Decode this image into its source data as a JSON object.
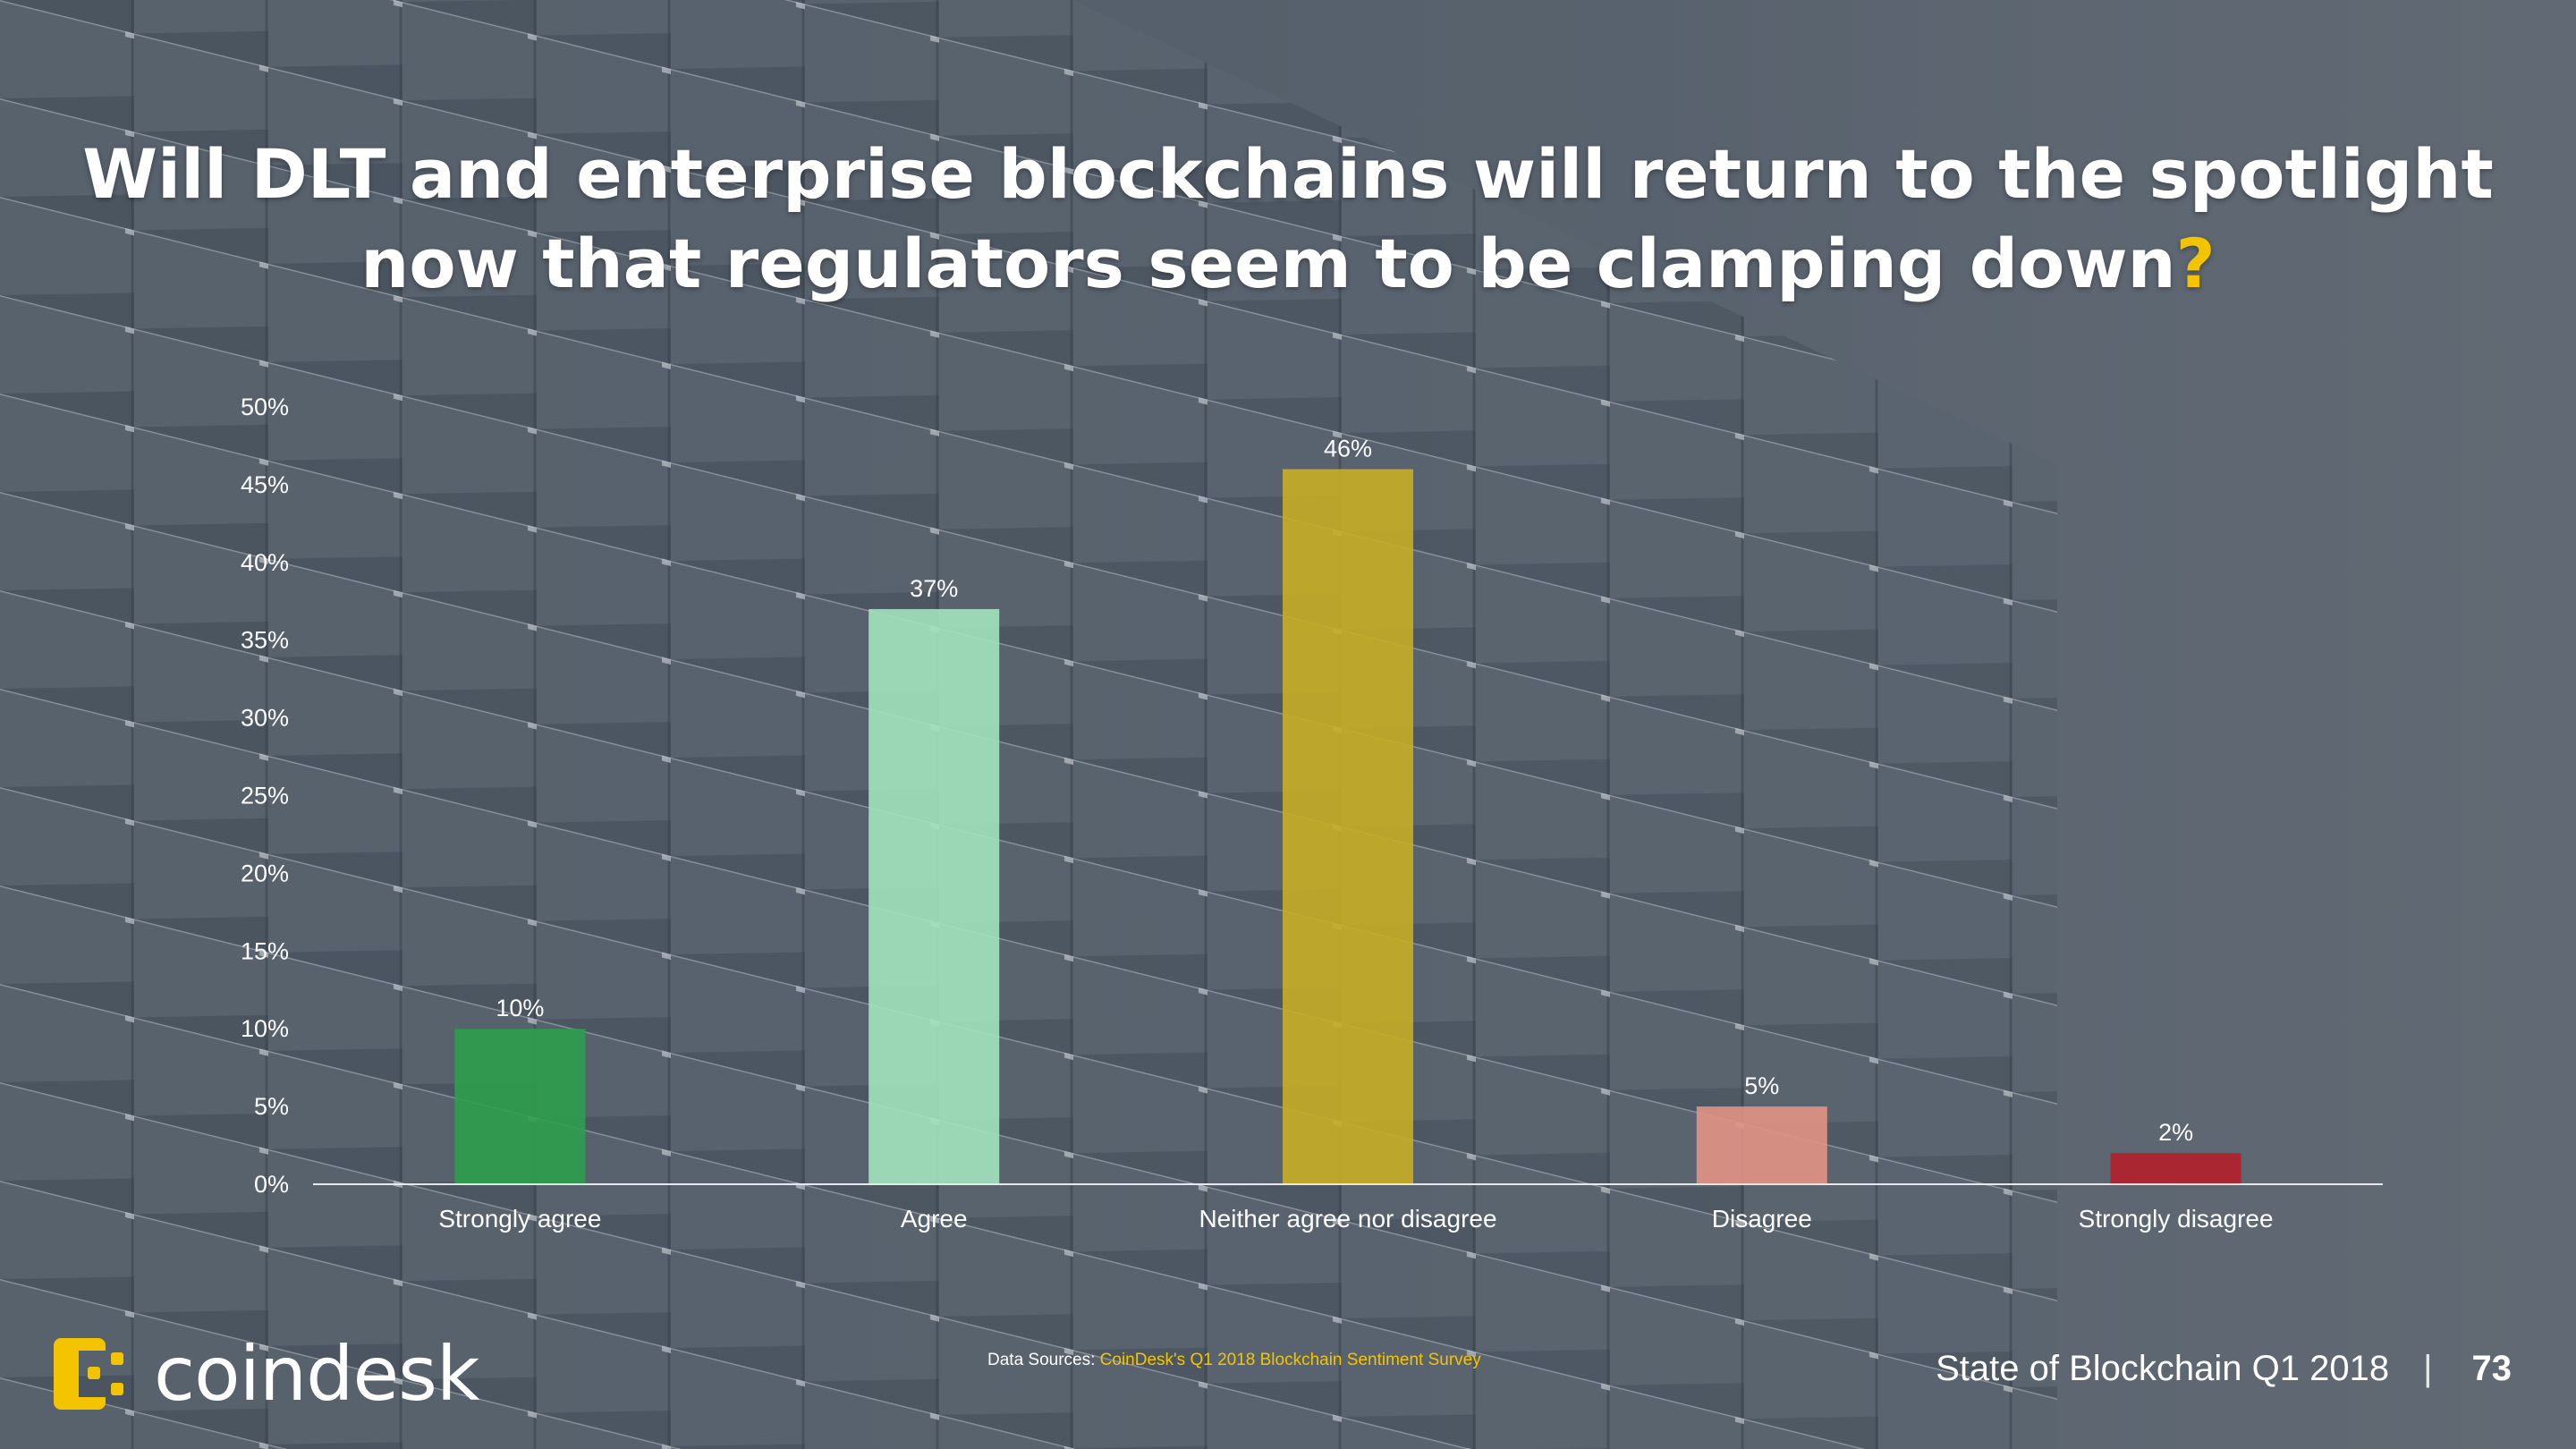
{
  "title": {
    "line1": "Will DLT and enterprise blockchains will return to the spotlight",
    "line2": "now that regulators seem to be clamping down",
    "qmark": "?"
  },
  "colors": {
    "accent": "#f5c400",
    "bar_strongly_agree": "#2e9e4c",
    "bar_agree": "#a3e3bc",
    "bar_neither": "#c6ad25",
    "bar_disagree": "#e19284",
    "bar_strongly_disagree": "#b3202a"
  },
  "chart_data": {
    "type": "bar",
    "categories": [
      "Strongly agree",
      "Agree",
      "Neither agree nor disagree",
      "Disagree",
      "Strongly disagree"
    ],
    "values": [
      10,
      37,
      46,
      5,
      2
    ],
    "value_labels": [
      "10%",
      "37%",
      "46%",
      "5%",
      "2%"
    ],
    "y_ticks": [
      "0%",
      "5%",
      "10%",
      "15%",
      "20%",
      "25%",
      "30%",
      "35%",
      "40%",
      "45%",
      "50%"
    ],
    "ylim": [
      0,
      50
    ],
    "grid": false,
    "legend": "none"
  },
  "footer": {
    "logo_text": "coindesk",
    "source_prefix": "Data Sources: ",
    "source_link": "CoinDesk's Q1 2018 Blockchain Sentiment Survey",
    "report": "State of Blockchain Q1 2018",
    "separator": "|",
    "page": "73"
  }
}
